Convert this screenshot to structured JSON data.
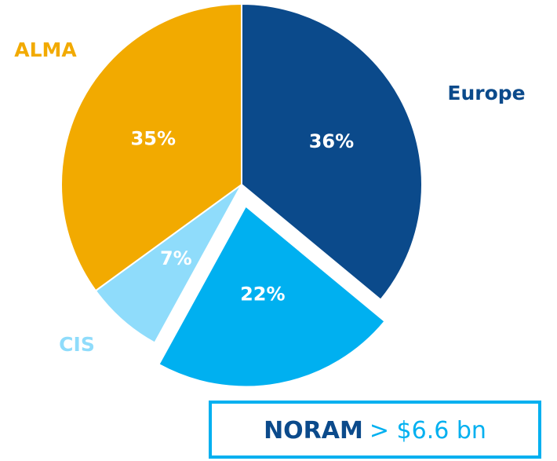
{
  "chart_data": {
    "type": "pie",
    "categories": [
      "Europe",
      "NORAM",
      "CIS",
      "ALMA"
    ],
    "values": [
      36,
      22,
      7,
      35
    ],
    "value_labels": [
      "36%",
      "22%",
      "7%",
      "35%"
    ],
    "colors": [
      "#0b4a8b",
      "#00b0f0",
      "#8fdcfb",
      "#f2aa00"
    ],
    "exploded": [
      1
    ],
    "annotation": "> $6.6 bn"
  }
}
